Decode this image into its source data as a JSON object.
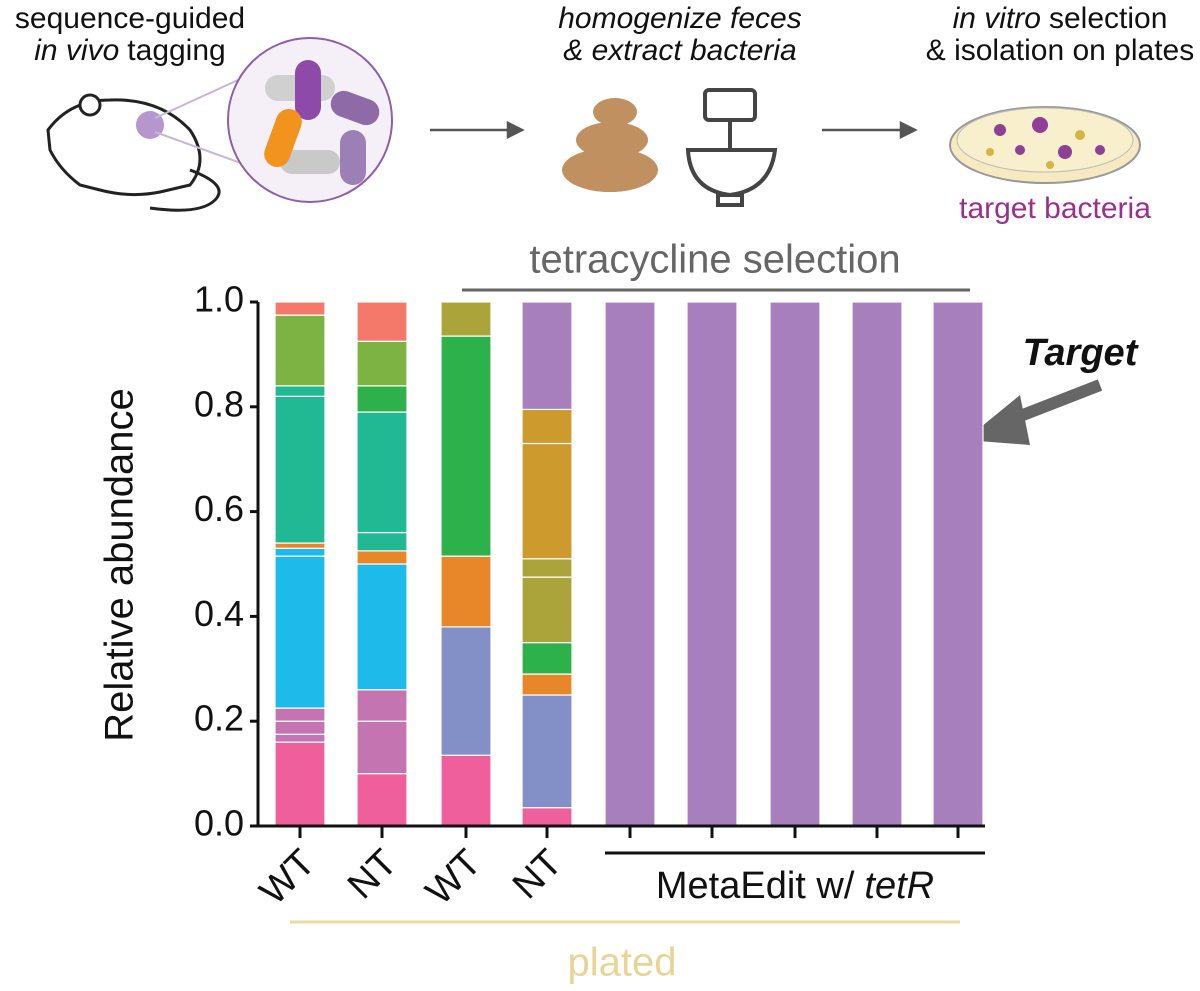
{
  "chart_data": {
    "type": "stacked-bar",
    "ylabel": "Relative abundance",
    "ylim": [
      0,
      1
    ],
    "yticks": [
      {
        "value": 0,
        "label": "0.0"
      },
      0.2,
      0.4,
      0.6,
      0.8,
      {
        "value": 1,
        "label": "1.0"
      }
    ],
    "categories": [
      "WT",
      "NT",
      "WT",
      "NT",
      null,
      null,
      null,
      null,
      null
    ],
    "stacks": [
      [
        {
          "value": 0.16,
          "color": "#ee5f9c"
        },
        {
          "value": 0.015,
          "color": "#c474b0"
        },
        {
          "value": 0.025,
          "color": "#c474b0"
        },
        {
          "value": 0.025,
          "color": "#c474b0"
        },
        {
          "value": 0.29,
          "color": "#1ebbea"
        },
        {
          "value": 0.015,
          "color": "#1ebbea"
        },
        {
          "value": 0.01,
          "color": "#e8862a"
        },
        {
          "value": 0.28,
          "color": "#20b994"
        },
        {
          "value": 0.02,
          "color": "#20b994"
        },
        {
          "value": 0.135,
          "color": "#7cb342"
        },
        {
          "value": 0.025,
          "color": "#f4796b"
        }
      ],
      [
        {
          "value": 0.1,
          "color": "#ee5f9c"
        },
        {
          "value": 0.1,
          "color": "#c474b0"
        },
        {
          "value": 0.06,
          "color": "#c474b0"
        },
        {
          "value": 0.24,
          "color": "#1ebbea"
        },
        {
          "value": 0.025,
          "color": "#e8862a"
        },
        {
          "value": 0.035,
          "color": "#20b994"
        },
        {
          "value": 0.23,
          "color": "#20b994"
        },
        {
          "value": 0.05,
          "color": "#2db14a"
        },
        {
          "value": 0.085,
          "color": "#7cb342"
        },
        {
          "value": 0.075,
          "color": "#f4796b"
        }
      ],
      [
        {
          "value": 0.135,
          "color": "#ee5f9c"
        },
        {
          "value": 0.245,
          "color": "#8390c8"
        },
        {
          "value": 0.135,
          "color": "#e8862a"
        },
        {
          "value": 0.42,
          "color": "#2db14a"
        },
        {
          "value": 0.065,
          "color": "#aaa43a"
        }
      ],
      [
        {
          "value": 0.035,
          "color": "#ee5f9c"
        },
        {
          "value": 0.215,
          "color": "#8390c8"
        },
        {
          "value": 0.04,
          "color": "#e8862a"
        },
        {
          "value": 0.06,
          "color": "#2db14a"
        },
        {
          "value": 0.125,
          "color": "#aaa43a"
        },
        {
          "value": 0.035,
          "color": "#aaa43a"
        },
        {
          "value": 0.22,
          "color": "#cd9a2d"
        },
        {
          "value": 0.065,
          "color": "#cd9a2d"
        },
        {
          "value": 0.205,
          "color": "#a77fbd"
        }
      ],
      [
        {
          "value": 1,
          "color": "#a77fbd"
        }
      ],
      [
        {
          "value": 1,
          "color": "#a77fbd"
        }
      ],
      [
        {
          "value": 1,
          "color": "#a77fbd"
        }
      ],
      [
        {
          "value": 1,
          "color": "#a77fbd"
        }
      ],
      [
        {
          "value": 1,
          "color": "#a77fbd"
        }
      ]
    ],
    "annotations": {
      "selection": "tetracycline selection",
      "group": [
        "MetaEdit w/",
        "tetR"
      ],
      "plated": "plated",
      "target": "Target"
    }
  },
  "steps": [
    {
      "lines": [
        "sequence-guided",
        "in vivo",
        "tagging"
      ]
    },
    {
      "lines": [
        "homogenize feces",
        "& extract bacteria"
      ]
    },
    {
      "lines": [
        "in vitro",
        "selection",
        "& isolation on plates"
      ],
      "caption": "target bacteria"
    }
  ]
}
